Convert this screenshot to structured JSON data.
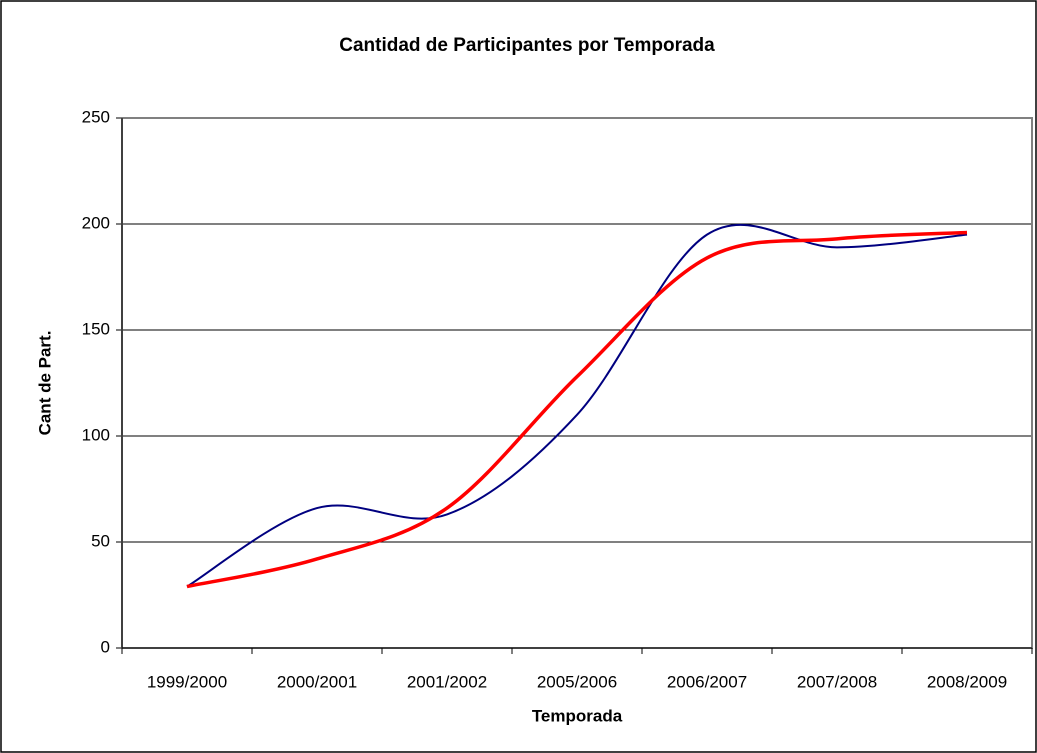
{
  "chart_data": {
    "type": "line",
    "title": "Cantidad de Participantes por Temporada",
    "xlabel": "Temporada",
    "ylabel": "Cant de Part.",
    "categories": [
      "1999/2000",
      "2000/2001",
      "2001/2002",
      "2005/2006",
      "2006/2007",
      "2007/2008",
      "2008/2009"
    ],
    "series": [
      {
        "color": "#000080",
        "values": [
          29,
          66,
          63,
          110,
          195,
          189,
          195
        ],
        "width": 2
      },
      {
        "color": "#ff0000",
        "values": [
          29,
          42,
          66,
          128,
          184,
          193,
          196
        ],
        "width": 3.5
      }
    ],
    "ylim": [
      0,
      250
    ],
    "yticks": [
      0,
      50,
      100,
      150,
      200,
      250
    ],
    "grid": true,
    "smooth": true
  }
}
